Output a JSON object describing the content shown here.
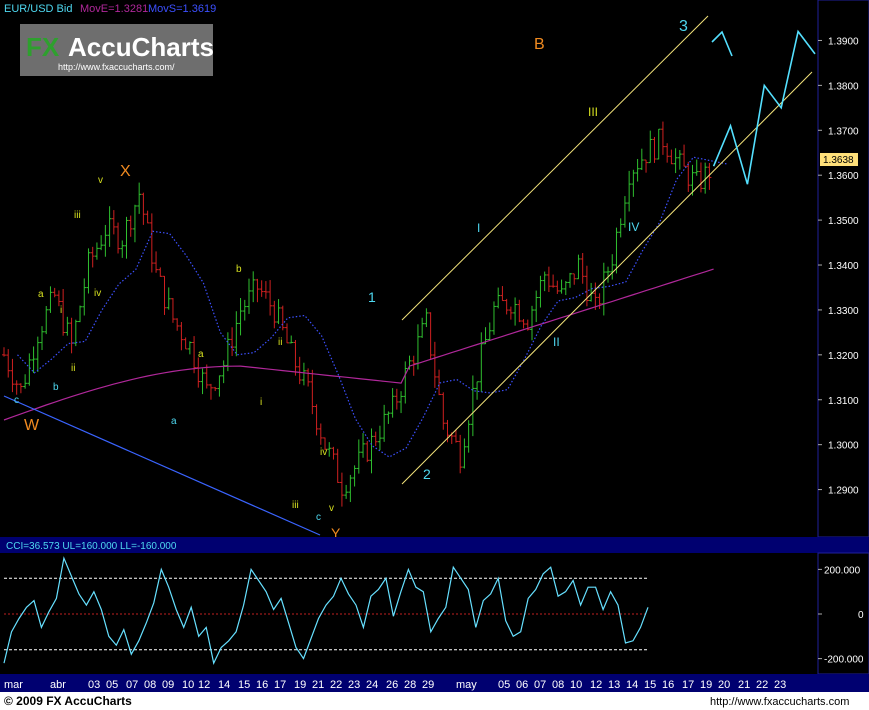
{
  "header": {
    "symbol": "EUR/USD Bid",
    "move_label": "MovE=1.3281",
    "movs_label": "MovS=1.3619",
    "logo_word1": "FX",
    "logo_word2": "AccuCharts",
    "logo_url": "http://www.fxaccucharts.com/"
  },
  "colors": {
    "background": "#000000",
    "panel_border": "#1f1f9a",
    "axis_bar": "#000070",
    "bull_bar": "#2fbf2f",
    "bear_bar": "#d02020",
    "move_line": "#b0289a",
    "movs_line": "#3c50ff",
    "channel": "#f2e27a",
    "trend_line": "#3a64ff",
    "projection": "#54e0ff",
    "wave_orange": "#f08a20",
    "wave_cyan": "#4ed8f0",
    "wave_green": "#d6e020",
    "cci_line": "#66e0ff",
    "price_badge": "#ffe07a"
  },
  "wave_labels": [
    "W",
    "X",
    "Y",
    "B",
    "1",
    "2",
    "3",
    "I",
    "II",
    "III",
    "IV",
    "a",
    "b",
    "c",
    "i",
    "ii",
    "iii",
    "iv",
    "v"
  ],
  "last_price": "1.3638",
  "cci_header": "CCI=36.573 UL=160.000 LL=-160.000",
  "footer_left": "© 2009 FX AccuCharts",
  "footer_right": "http://www.fxaccucharts.com",
  "chart_data": {
    "type": "line",
    "series_kind": "ohlc-bars",
    "timeframe_labels": [
      "mar",
      "abr",
      "03",
      "05",
      "07",
      "08",
      "09",
      "10",
      "12",
      "14",
      "15",
      "16",
      "17",
      "19",
      "21",
      "22",
      "23",
      "24",
      "26",
      "28",
      "29",
      "may",
      "05",
      "06",
      "07",
      "08",
      "10",
      "12",
      "13",
      "14",
      "15",
      "16",
      "17",
      "19",
      "20",
      "21",
      "22",
      "23"
    ],
    "ylim": [
      1.281,
      1.395
    ],
    "y_ticks": [
      "1.3900",
      "1.3800",
      "1.3700",
      "1.3600",
      "1.3500",
      "1.3400",
      "1.3300",
      "1.3200",
      "1.3100",
      "1.3000",
      "1.2900"
    ],
    "price_close_path": [
      [
        0,
        1.32
      ],
      [
        1,
        1.312
      ],
      [
        2,
        1.325
      ],
      [
        3,
        1.333
      ],
      [
        4,
        1.322
      ],
      [
        5,
        1.34
      ],
      [
        6,
        1.348
      ],
      [
        7,
        1.346
      ],
      [
        8,
        1.356
      ],
      [
        9,
        1.338
      ],
      [
        10,
        1.328
      ],
      [
        11,
        1.322
      ],
      [
        12,
        1.312
      ],
      [
        13,
        1.318
      ],
      [
        14,
        1.33
      ],
      [
        15,
        1.335
      ],
      [
        16,
        1.33
      ],
      [
        17,
        1.32
      ],
      [
        18,
        1.312
      ],
      [
        19,
        1.3
      ],
      [
        20,
        1.291
      ],
      [
        21,
        1.296
      ],
      [
        22,
        1.302
      ],
      [
        23,
        1.308
      ],
      [
        24,
        1.318
      ],
      [
        25,
        1.327
      ],
      [
        26,
        1.305
      ],
      [
        27,
        1.298
      ],
      [
        28,
        1.316
      ],
      [
        29,
        1.33
      ],
      [
        30,
        1.332
      ],
      [
        31,
        1.328
      ],
      [
        32,
        1.338
      ],
      [
        33,
        1.333
      ],
      [
        34,
        1.34
      ],
      [
        35,
        1.33
      ],
      [
        36,
        1.342
      ],
      [
        37,
        1.361
      ],
      [
        38,
        1.365
      ],
      [
        39,
        1.368
      ],
      [
        40,
        1.362
      ],
      [
        41,
        1.358
      ],
      [
        42,
        1.362
      ]
    ],
    "projection_path": [
      [
        42,
        1.362
      ],
      [
        43,
        1.371
      ],
      [
        44,
        1.358
      ],
      [
        45,
        1.38
      ],
      [
        46,
        1.375
      ],
      [
        47,
        1.392
      ],
      [
        48,
        1.387
      ]
    ],
    "cci": {
      "upper": 160,
      "lower": -160,
      "ylim": [
        -260,
        260
      ],
      "y_ticks": [
        "200.000",
        "0",
        "-200.000"
      ],
      "values": [
        -220,
        -80,
        -20,
        30,
        60,
        -60,
        10,
        70,
        250,
        170,
        90,
        40,
        100,
        20,
        -100,
        -140,
        -70,
        -180,
        -120,
        -40,
        50,
        200,
        120,
        20,
        -60,
        30,
        -100,
        -60,
        -220,
        -150,
        -120,
        -80,
        40,
        200,
        150,
        100,
        20,
        70,
        -40,
        -150,
        -200,
        -110,
        -20,
        40,
        80,
        160,
        90,
        40,
        -60,
        80,
        110,
        160,
        -10,
        100,
        200,
        120,
        100,
        -80,
        -20,
        30,
        210,
        160,
        110,
        -60,
        60,
        90,
        160,
        -30,
        -100,
        -80,
        70,
        110,
        180,
        210,
        80,
        100,
        150,
        40,
        120,
        120,
        20,
        100,
        40,
        -130,
        -120,
        -60,
        30
      ]
    }
  }
}
